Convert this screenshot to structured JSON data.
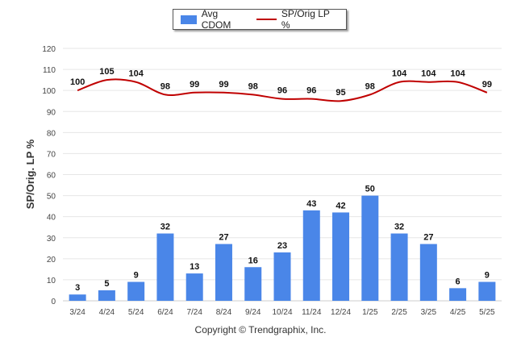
{
  "legend": {
    "bar_label": "Avg CDOM",
    "line_label": "SP/Orig LP %"
  },
  "footer": "Copyright © Trendgraphix, Inc.",
  "colors": {
    "bar": "#4a86e8",
    "line": "#c00000",
    "grid": "#e6e6e6",
    "text": "#333333"
  },
  "chart_data": {
    "type": "bar",
    "ylabel": "SP/Orig. LP %",
    "ylim": [
      0,
      120
    ],
    "yticks": [
      0,
      10,
      20,
      30,
      40,
      50,
      60,
      70,
      80,
      90,
      100,
      110,
      120
    ],
    "categories": [
      "3/24",
      "4/24",
      "5/24",
      "6/24",
      "7/24",
      "8/24",
      "9/24",
      "10/24",
      "11/24",
      "12/24",
      "1/25",
      "2/25",
      "3/25",
      "4/25",
      "5/25"
    ],
    "series": [
      {
        "name": "Avg CDOM",
        "type": "bar",
        "values": [
          3,
          5,
          9,
          32,
          13,
          27,
          16,
          23,
          43,
          42,
          50,
          32,
          27,
          6,
          9
        ]
      },
      {
        "name": "SP/Orig LP %",
        "type": "line",
        "values": [
          100,
          105,
          104,
          98,
          99,
          99,
          98,
          96,
          96,
          95,
          98,
          104,
          104,
          104,
          99
        ]
      }
    ],
    "grid": true,
    "legend_position": "top-center"
  }
}
